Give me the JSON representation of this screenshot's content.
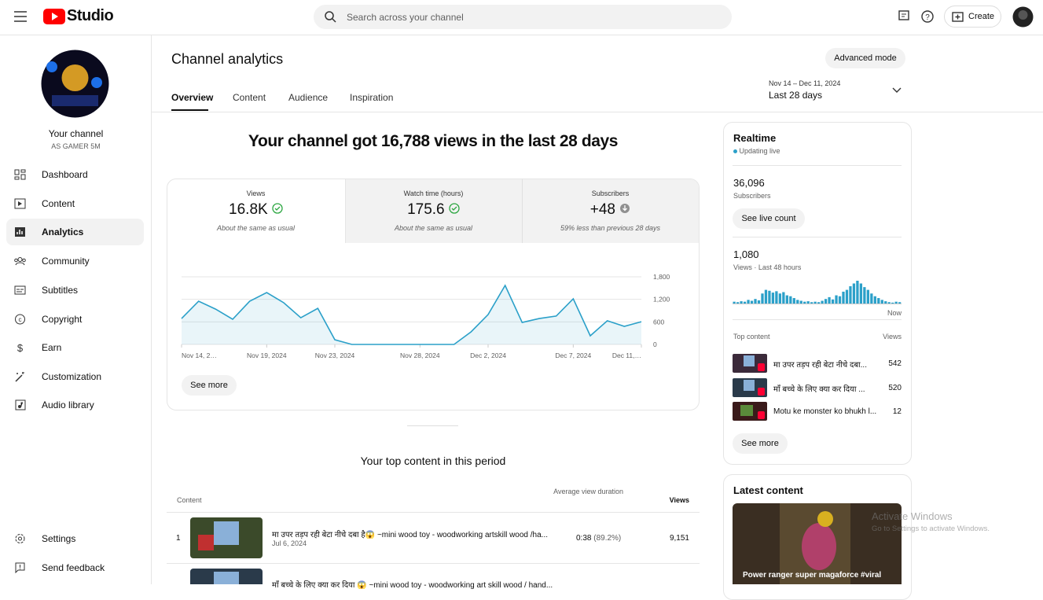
{
  "header": {
    "logo": "Studio",
    "search_placeholder": "Search across your channel",
    "create": "Create"
  },
  "sidebar": {
    "channel_title": "Your channel",
    "channel_name": "AS GAMER 5M",
    "items": [
      "Dashboard",
      "Content",
      "Analytics",
      "Community",
      "Subtitles",
      "Copyright",
      "Earn",
      "Customization",
      "Audio library"
    ],
    "bottom_items": [
      "Settings",
      "Send feedback"
    ]
  },
  "page": {
    "title": "Channel analytics",
    "advanced_mode": "Advanced mode",
    "tabs": [
      "Overview",
      "Content",
      "Audience",
      "Inspiration"
    ],
    "date_range": "Nov 14 – Dec 11, 2024",
    "period": "Last 28 days"
  },
  "summary": {
    "headline": "Your channel got 16,788 views in the last 28 days",
    "cards": [
      {
        "label": "Views",
        "value": "16.8K",
        "note": "About the same as usual"
      },
      {
        "label": "Watch time (hours)",
        "value": "175.6",
        "note": "About the same as usual"
      },
      {
        "label": "Subscribers",
        "value": "+48",
        "note": "59% less than previous 28 days"
      }
    ],
    "see_more": "See more"
  },
  "chart_data": [
    {
      "type": "line",
      "color": "#2ba0c9",
      "categories": [
        "Nov 14, 2…",
        null,
        null,
        null,
        null,
        "Nov 19, 2024",
        null,
        null,
        null,
        "Nov 23, 2024",
        null,
        null,
        null,
        null,
        "Nov 28, 2024",
        null,
        null,
        null,
        "Dec 2, 2024",
        null,
        null,
        null,
        null,
        "Dec 7, 2024",
        null,
        null,
        null,
        "Dec 11,…"
      ],
      "values": [
        690,
        1150,
        940,
        670,
        1150,
        1380,
        1110,
        710,
        960,
        125,
        0,
        0,
        0,
        0,
        0,
        0,
        0,
        335,
        795,
        1570,
        585,
        690,
        755,
        1215,
        230,
        630,
        480,
        605
      ],
      "ylim": [
        0,
        1800
      ],
      "yticks": [
        0,
        600,
        {
          "value": 1200,
          "label": "1,200"
        },
        {
          "value": 1800,
          "label": "1,800"
        }
      ],
      "grid": true
    },
    {
      "type": "bar",
      "color": "#2ba0c9",
      "values": [
        4,
        3,
        5,
        4,
        8,
        6,
        10,
        7,
        22,
        30,
        28,
        24,
        27,
        22,
        25,
        18,
        16,
        12,
        8,
        6,
        4,
        5,
        3,
        4,
        3,
        6,
        10,
        14,
        9,
        18,
        16,
        26,
        30,
        38,
        44,
        50,
        44,
        36,
        30,
        22,
        16,
        12,
        8,
        5,
        3,
        2,
        4,
        3
      ]
    }
  ],
  "top_content": {
    "title": "Your top content in this period",
    "columns": [
      "Content",
      "Average view duration",
      "Views"
    ],
    "rows": [
      {
        "rank": "1",
        "title": "मा उपर तड़प रही बेटा नीचे दबा है😱 ~mini wood toy - woodworking artskill wood /ha...",
        "date": "Jul 6, 2024",
        "duration": "0:38",
        "percent": "(89.2%)",
        "views": "9,151"
      },
      {
        "title": "माँ बच्चे के लिए क्या कर दिया 😱 ~mini wood toy - woodworking art skill wood / hand..."
      }
    ]
  },
  "realtime": {
    "title": "Realtime",
    "status": "Updating live",
    "subscribers": "36,096",
    "subscribers_label": "Subscribers",
    "see_live_count": "See live count",
    "views": "1,080",
    "views_label": "Views · Last 48 hours",
    "now": "Now",
    "top_content_label": "Top content",
    "views_column": "Views",
    "items": [
      {
        "title": "मा उपर तड़प रही बेटा नीचे दबा...",
        "views": "542"
      },
      {
        "title": "माँ बच्चे के लिए क्या कर दिया ...",
        "views": "520"
      },
      {
        "title": "Motu ke monster ko bhukh l...",
        "views": "12"
      }
    ],
    "see_more": "See more"
  },
  "latest": {
    "title": "Latest content",
    "video_title": "Power ranger super magaforce #viral"
  },
  "watermark": {
    "title": "Activate Windows",
    "subtitle": "Go to Settings to activate Windows."
  }
}
